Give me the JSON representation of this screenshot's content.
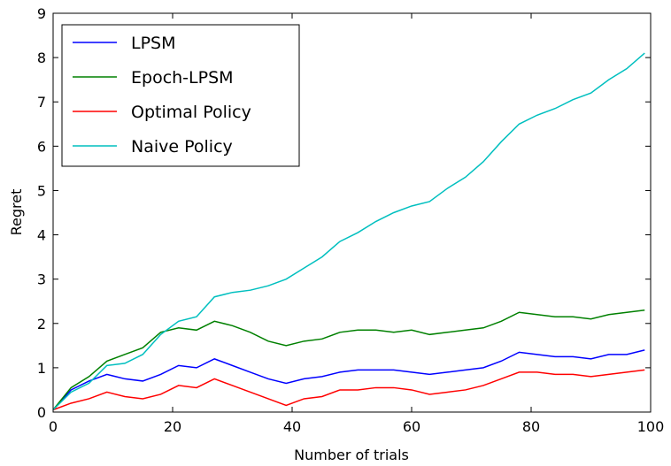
{
  "chart_data": {
    "type": "line",
    "xlabel": "Number of trials",
    "ylabel": "Regret",
    "x": [
      0,
      3,
      6,
      9,
      12,
      15,
      18,
      21,
      24,
      27,
      30,
      33,
      36,
      39,
      42,
      45,
      48,
      51,
      54,
      57,
      60,
      63,
      66,
      69,
      72,
      75,
      78,
      81,
      84,
      87,
      90,
      93,
      96,
      99
    ],
    "series": [
      {
        "name": "LPSM",
        "color": "#0000ff",
        "values": [
          0.05,
          0.5,
          0.7,
          0.85,
          0.75,
          0.7,
          0.85,
          1.05,
          1.0,
          1.2,
          1.05,
          0.9,
          0.75,
          0.65,
          0.75,
          0.8,
          0.9,
          0.95,
          0.95,
          0.95,
          0.9,
          0.85,
          0.9,
          0.95,
          1.0,
          1.15,
          1.35,
          1.3,
          1.25,
          1.25,
          1.2,
          1.3,
          1.3,
          1.4
        ]
      },
      {
        "name": "Epoch-LPSM",
        "color": "#008000",
        "values": [
          0.05,
          0.55,
          0.8,
          1.15,
          1.3,
          1.45,
          1.8,
          1.9,
          1.85,
          2.05,
          1.95,
          1.8,
          1.6,
          1.5,
          1.6,
          1.65,
          1.8,
          1.85,
          1.85,
          1.8,
          1.85,
          1.75,
          1.8,
          1.85,
          1.9,
          2.05,
          2.25,
          2.2,
          2.15,
          2.15,
          2.1,
          2.2,
          2.25,
          2.3
        ]
      },
      {
        "name": "Optimal Policy",
        "color": "#ff0000",
        "values": [
          0.05,
          0.2,
          0.3,
          0.45,
          0.35,
          0.3,
          0.4,
          0.6,
          0.55,
          0.75,
          0.6,
          0.45,
          0.3,
          0.15,
          0.3,
          0.35,
          0.5,
          0.5,
          0.55,
          0.55,
          0.5,
          0.4,
          0.45,
          0.5,
          0.6,
          0.75,
          0.9,
          0.9,
          0.85,
          0.85,
          0.8,
          0.85,
          0.9,
          0.95
        ]
      },
      {
        "name": "Naive Policy",
        "color": "#00bfbf",
        "values": [
          0.05,
          0.45,
          0.65,
          1.05,
          1.1,
          1.3,
          1.75,
          2.05,
          2.15,
          2.6,
          2.7,
          2.75,
          2.85,
          3.0,
          3.25,
          3.5,
          3.85,
          4.05,
          4.3,
          4.5,
          4.65,
          4.75,
          5.05,
          5.3,
          5.65,
          6.1,
          6.5,
          6.7,
          6.85,
          7.05,
          7.2,
          7.5,
          7.75,
          8.1
        ]
      }
    ],
    "xlim": [
      0,
      100
    ],
    "xticks": [
      0,
      20,
      40,
      60,
      80,
      100
    ],
    "ylim": [
      0,
      9
    ],
    "yticks": [
      0,
      1,
      2,
      3,
      4,
      5,
      6,
      7,
      8,
      9
    ],
    "legend": "upper left"
  }
}
